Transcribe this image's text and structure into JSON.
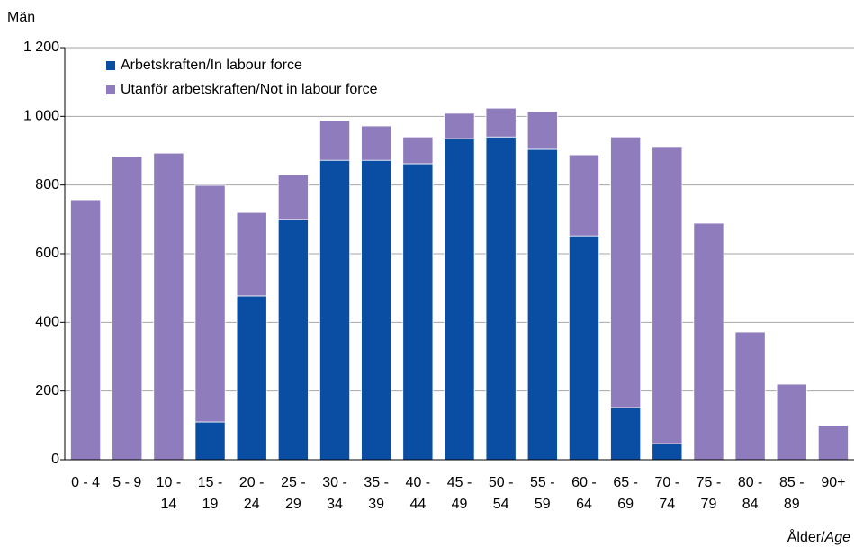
{
  "chart_data": {
    "type": "stacked_bar",
    "y_label": "Män",
    "x_label": [
      "Ålder/",
      "Age"
    ],
    "categories": [
      "0 - 4",
      "5 - 9",
      "10 - 14",
      "15 - 19",
      "20 - 24",
      "25 - 29",
      "30 - 34",
      "35 - 39",
      "40 - 44",
      "45 - 49",
      "50 - 54",
      "55 - 59",
      "60 - 64",
      "65 - 69",
      "70 - 74",
      "75 - 79",
      "80 - 84",
      "85 - 89",
      "90+"
    ],
    "series": [
      {
        "name": "Arbetskraften/In labour force",
        "color": "#0a4ea3",
        "values": [
          0,
          0,
          0,
          110,
          477,
          700,
          872,
          872,
          862,
          935,
          940,
          904,
          652,
          152,
          47,
          0,
          0,
          0,
          0
        ]
      },
      {
        "name": "Utanför arbetskraften/Not in labour force",
        "color": "#8e7cbc",
        "values": [
          757,
          883,
          893,
          689,
          243,
          130,
          116,
          100,
          78,
          74,
          84,
          110,
          236,
          788,
          865,
          689,
          372,
          220,
          100
        ]
      }
    ],
    "ylim": [
      0,
      1200
    ],
    "yticks": [
      0,
      200,
      400,
      600,
      800,
      {
        "value": 1000,
        "label": "1 000"
      },
      {
        "value": 1200,
        "label": "1 200"
      }
    ],
    "grid": true,
    "legend": "top-left"
  }
}
